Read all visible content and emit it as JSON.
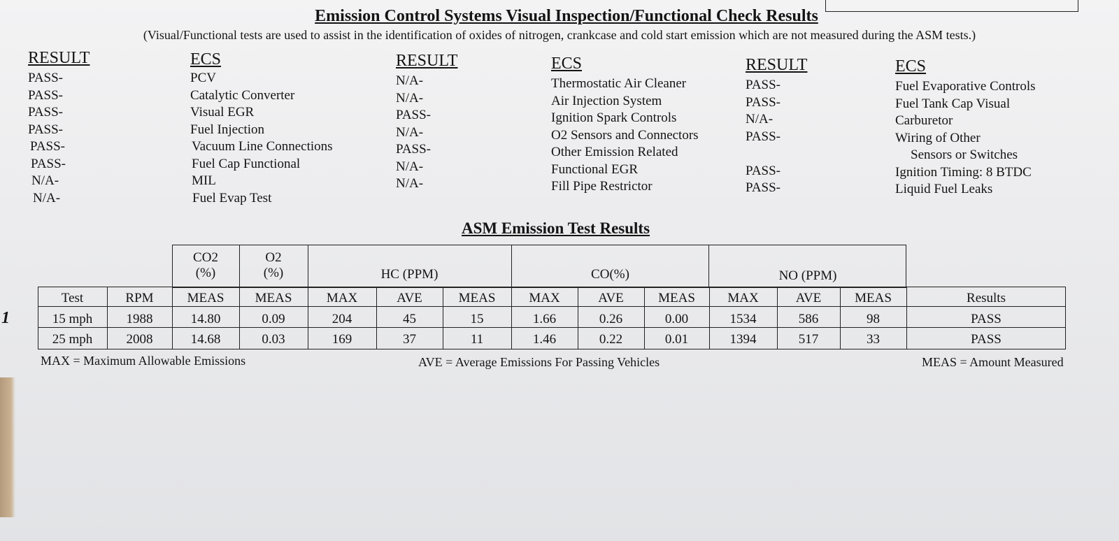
{
  "header": {
    "title": "Emission Control Systems Visual Inspection/Functional Check Results",
    "subtitle": "(Visual/Functional tests are used to assist in the identification of oxides of nitrogen, crankcase and cold start emission which are not measured during the ASM tests.)"
  },
  "ecs_columns": [
    {
      "result_header": "RESULT",
      "ecs_header": "ECS",
      "items": [
        {
          "result": "PASS-",
          "ecs": "PCV"
        },
        {
          "result": "PASS-",
          "ecs": "Catalytic Converter"
        },
        {
          "result": "PASS-",
          "ecs": "Visual EGR"
        },
        {
          "result": "PASS-",
          "ecs": "Fuel Injection"
        },
        {
          "result": "PASS-",
          "ecs": "Vacuum Line Connections"
        },
        {
          "result": "PASS-",
          "ecs": "Fuel Cap Functional"
        },
        {
          "result": "N/A-",
          "ecs": "MIL"
        },
        {
          "result": "N/A-",
          "ecs": "Fuel Evap Test"
        }
      ]
    },
    {
      "result_header": "RESULT",
      "ecs_header": "ECS",
      "items": [
        {
          "result": "N/A-",
          "ecs": "Thermostatic Air Cleaner"
        },
        {
          "result": "N/A-",
          "ecs": "Air Injection System"
        },
        {
          "result": "PASS-",
          "ecs": "Ignition Spark Controls"
        },
        {
          "result": "N/A-",
          "ecs": "O2 Sensors and Connectors"
        },
        {
          "result": "PASS-",
          "ecs": "Other Emission Related"
        },
        {
          "result": "N/A-",
          "ecs": "Functional EGR"
        },
        {
          "result": "N/A-",
          "ecs": "Fill Pipe Restrictor"
        }
      ]
    },
    {
      "result_header": "RESULT",
      "ecs_header": "ECS",
      "items": [
        {
          "result": "PASS-",
          "ecs": "Fuel Evaporative Controls"
        },
        {
          "result": "PASS-",
          "ecs": "Fuel Tank Cap Visual"
        },
        {
          "result": "N/A-",
          "ecs": "Carburetor"
        },
        {
          "result": "PASS-",
          "ecs": "Wiring of Other"
        },
        {
          "result": "",
          "ecs": "Sensors or Switches"
        },
        {
          "result": "PASS-",
          "ecs": "Ignition Timing: 8 BTDC"
        },
        {
          "result": "PASS-",
          "ecs": "Liquid Fuel Leaks"
        }
      ]
    }
  ],
  "asm": {
    "title": "ASM Emission Test Results",
    "group_headers": {
      "co2": [
        "CO2",
        "(%)"
      ],
      "o2": [
        "O2",
        "(%)"
      ],
      "hc": "HC (PPM)",
      "co": "CO(%)",
      "no": "NO (PPM)"
    },
    "columns": [
      "Test",
      "RPM",
      "MEAS",
      "MEAS",
      "MAX",
      "AVE",
      "MEAS",
      "MAX",
      "AVE",
      "MEAS",
      "MAX",
      "AVE",
      "MEAS",
      "Results"
    ],
    "rows": [
      [
        "15 mph",
        "1988",
        "14.80",
        "0.09",
        "204",
        "45",
        "15",
        "1.66",
        "0.26",
        "0.00",
        "1534",
        "586",
        "98",
        "PASS"
      ],
      [
        "25 mph",
        "2008",
        "14.68",
        "0.03",
        "169",
        "37",
        "11",
        "1.46",
        "0.22",
        "0.01",
        "1394",
        "517",
        "33",
        "PASS"
      ]
    ],
    "legend": {
      "max": "MAX = Maximum Allowable Emissions",
      "ave": "AVE = Average Emissions For Passing Vehicles",
      "meas": "MEAS = Amount Measured"
    }
  },
  "margin_mark": "1"
}
